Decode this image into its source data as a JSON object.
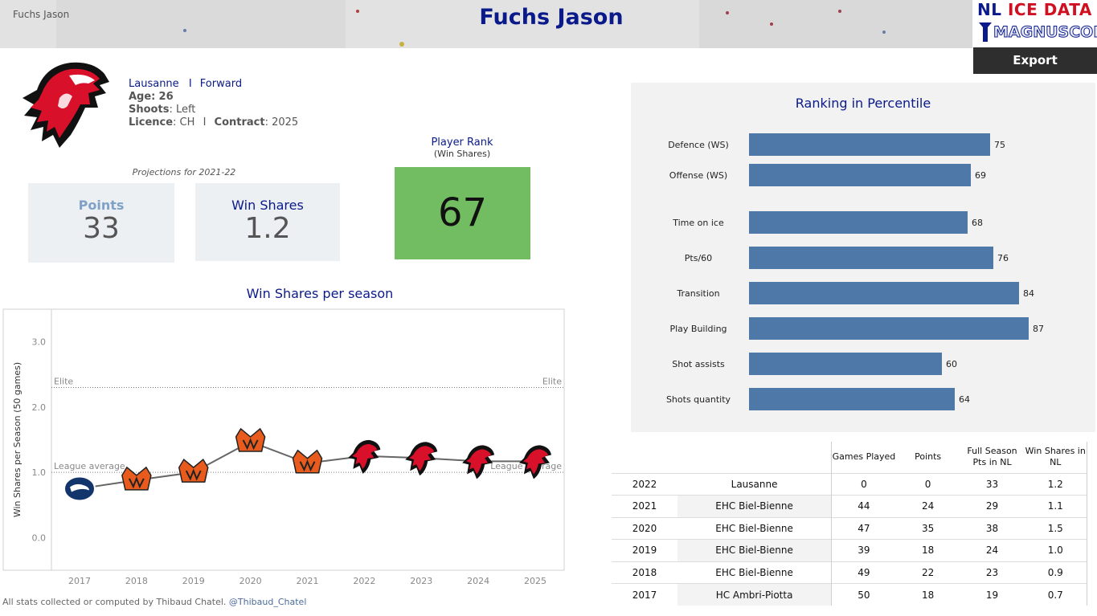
{
  "header": {
    "name_small": "Fuchs Jason",
    "title": "Fuchs Jason"
  },
  "brand": {
    "line1_a": "NL ",
    "line1_b": "ICE DATA",
    "line2": "MAGNUSCORSI"
  },
  "export_label": "Export",
  "player": {
    "team": "Lausanne",
    "separator": "I",
    "position": "Forward",
    "age_label": "Age:",
    "age": "26",
    "shoots_label": "Shoots",
    "shoots": ": Left",
    "licence_label": "Licence",
    "licence": ": CH",
    "contract_label": "Contract",
    "contract": ": 2025"
  },
  "projections": {
    "caption": "Projections for 2021-22",
    "points_label": "Points",
    "points": "33",
    "ws_label": "Win Shares",
    "ws": "1.2"
  },
  "rank": {
    "title": "Player Rank",
    "subtitle": "(Win Shares)",
    "value": "67",
    "color": "#72bc62"
  },
  "ws_chart_title": "Win Shares per season",
  "chart_data": [
    {
      "type": "line",
      "title": "Win Shares per season",
      "ylabel": "Win Shares per Season (50 games)",
      "xlabel": "",
      "x": [
        "2017",
        "2018",
        "2019",
        "2020",
        "2021",
        "2022",
        "2023",
        "2024",
        "2025"
      ],
      "series": [
        {
          "values": [
            0.75,
            0.88,
            1.0,
            1.47,
            1.14,
            1.25,
            1.22,
            1.17,
            1.17
          ],
          "teams": [
            "HC Ambri-Piotta",
            "EHC Biel-Bienne",
            "EHC Biel-Bienne",
            "EHC Biel-Bienne",
            "EHC Biel-Bienne",
            "Lausanne",
            "Lausanne",
            "Lausanne",
            "Lausanne"
          ]
        }
      ],
      "ylim": [
        -0.5,
        3.5
      ],
      "yticks": [
        "0.0",
        "1.0",
        "2.0",
        "3.0"
      ],
      "reference_lines": [
        {
          "label": "Elite",
          "value": 2.3
        },
        {
          "label": "League average",
          "value": 1.0
        }
      ],
      "grid": false
    },
    {
      "type": "bar",
      "orientation": "horizontal",
      "title": "Ranking in Percentile",
      "categories": [
        "Defence (WS)",
        "Offense (WS)",
        "Time on ice",
        "Pts/60",
        "Transition",
        "Play Building",
        "Shot assists",
        "Shots quantity"
      ],
      "values": [
        75,
        69,
        68,
        76,
        84,
        87,
        60,
        64
      ],
      "xlim": [
        0,
        100
      ],
      "bar_color": "#4e78a8"
    }
  ],
  "table": {
    "headers": [
      "",
      "",
      "Games Played",
      "Points",
      "Full Season Pts in NL",
      "Win Shares in NL"
    ],
    "rows": [
      [
        "2022",
        "Lausanne",
        "0",
        "0",
        "33",
        "1.2"
      ],
      [
        "2021",
        "EHC Biel-Bienne",
        "44",
        "24",
        "29",
        "1.1"
      ],
      [
        "2020",
        "EHC Biel-Bienne",
        "47",
        "35",
        "38",
        "1.5"
      ],
      [
        "2019",
        "EHC Biel-Bienne",
        "39",
        "18",
        "24",
        "1.0"
      ],
      [
        "2018",
        "EHC Biel-Bienne",
        "49",
        "22",
        "23",
        "0.9"
      ],
      [
        "2017",
        "HC Ambri-Piotta",
        "50",
        "18",
        "19",
        "0.7"
      ]
    ]
  },
  "footer": {
    "text": "All stats collected or computed by Thibaud Chatel.",
    "handle": "@Thibaud_Chatel"
  },
  "colors": {
    "title_blue": "#0a1a8a",
    "bar_blue": "#4e78a8",
    "lausanne_red": "#d8102a",
    "biel_orange": "#e85b1c",
    "ambri_navy": "#12356b"
  }
}
